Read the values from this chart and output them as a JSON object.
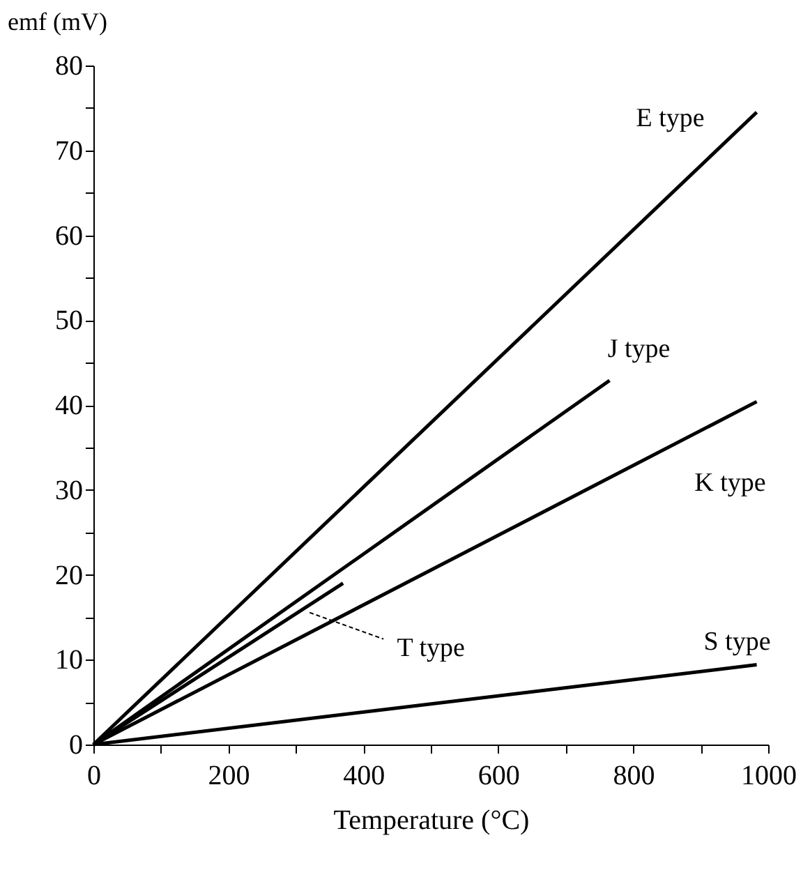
{
  "chart_data": {
    "type": "line",
    "xlabel": "Temperature (°C)",
    "ylabel": "emf (mV)",
    "xlim": [
      0,
      1000
    ],
    "ylim": [
      0,
      80
    ],
    "xticks": [
      0,
      {
        "value": 100,
        "label": null
      },
      200,
      {
        "value": 300,
        "label": null
      },
      400,
      {
        "value": 500,
        "label": null
      },
      600,
      {
        "value": 700,
        "label": null
      },
      800,
      {
        "value": 900,
        "label": null
      },
      1000
    ],
    "yticks": [
      0,
      {
        "value": 5,
        "label": null
      },
      10,
      {
        "value": 15,
        "label": null
      },
      20,
      {
        "value": 25,
        "label": null
      },
      30,
      {
        "value": 35,
        "label": null
      },
      40,
      {
        "value": 45,
        "label": null
      },
      50,
      {
        "value": 55,
        "label": null
      },
      60,
      {
        "value": 65,
        "label": null
      },
      70,
      {
        "value": 75,
        "label": null
      },
      80
    ],
    "grid": false,
    "marker": "none",
    "line_style": "solid",
    "series": [
      {
        "name": "E type",
        "color": "#000000",
        "x": [
          0,
          983
        ],
        "values": [
          0,
          74.5
        ]
      },
      {
        "name": "J type",
        "color": "#000000",
        "x": [
          0,
          765
        ],
        "values": [
          0,
          42.9
        ]
      },
      {
        "name": "K type",
        "color": "#000000",
        "x": [
          0,
          983
        ],
        "values": [
          0,
          40.4
        ]
      },
      {
        "name": "T type",
        "color": "#000000",
        "x": [
          0,
          370
        ],
        "values": [
          0,
          19.0
        ]
      },
      {
        "name": "S type",
        "color": "#000000",
        "x": [
          0,
          983
        ],
        "values": [
          0,
          9.4
        ]
      }
    ]
  }
}
